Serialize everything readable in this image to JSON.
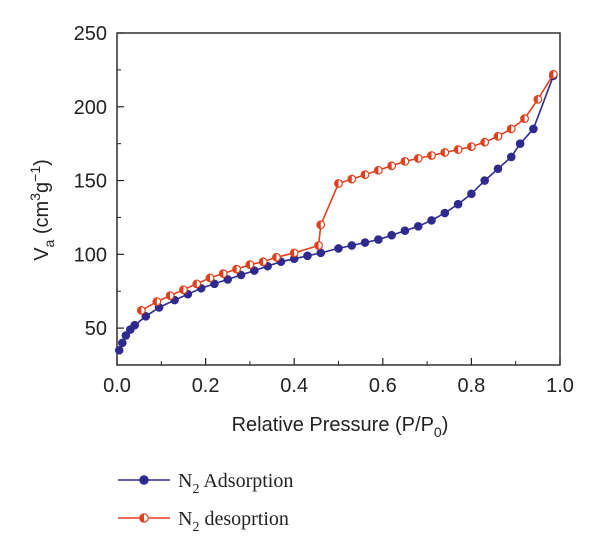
{
  "chart_data": {
    "type": "line",
    "xlabel": "Relative Pressure (P/P",
    "xlabel_sub": "0",
    "xlabel_end": ")",
    "ylabel_main": "V",
    "ylabel_sub": "a",
    "ylabel_open": " (cm",
    "ylabel_sup3": "3",
    "ylabel_g": "g",
    "ylabel_supneg": "−1",
    "ylabel_close": ")",
    "xlim": [
      0,
      1.0
    ],
    "ylim": [
      25,
      250
    ],
    "xticks": [
      0.0,
      0.2,
      0.4,
      0.6,
      0.8,
      1.0
    ],
    "xtick_labels": [
      "0.0",
      "0.2",
      "0.4",
      "0.6",
      "0.8",
      "1.0"
    ],
    "yticks": [
      50,
      100,
      150,
      200,
      250
    ],
    "ytick_labels": [
      "50",
      "100",
      "150",
      "200",
      "250"
    ],
    "grid": false,
    "legend_position": "bottom-left, below plot",
    "series": [
      {
        "name_main": "N",
        "name_sub": "2",
        "name_rest": " Adsorption",
        "color": "#2e2a8f",
        "marker": "filled-circle",
        "x": [
          0.005,
          0.012,
          0.02,
          0.03,
          0.04,
          0.065,
          0.095,
          0.13,
          0.16,
          0.19,
          0.22,
          0.25,
          0.28,
          0.31,
          0.34,
          0.37,
          0.4,
          0.43,
          0.46,
          0.5,
          0.53,
          0.56,
          0.59,
          0.62,
          0.65,
          0.68,
          0.71,
          0.74,
          0.77,
          0.8,
          0.83,
          0.86,
          0.89,
          0.91,
          0.94,
          0.985
        ],
        "y": [
          35,
          40,
          45,
          49,
          52,
          58,
          64,
          69,
          73,
          77,
          80,
          83,
          86,
          89,
          92,
          95,
          97,
          99,
          101,
          104,
          106,
          108,
          110,
          113,
          116,
          119,
          123,
          128,
          134,
          141,
          150,
          158,
          166,
          175,
          185,
          221
        ]
      },
      {
        "name_main": "N",
        "name_sub": "2",
        "name_rest": " desoprtion",
        "color": "#e0401d",
        "marker": "half-filled-circle",
        "x": [
          0.055,
          0.09,
          0.12,
          0.15,
          0.18,
          0.21,
          0.24,
          0.27,
          0.3,
          0.33,
          0.36,
          0.4,
          0.455,
          0.46,
          0.5,
          0.53,
          0.56,
          0.59,
          0.62,
          0.65,
          0.68,
          0.71,
          0.74,
          0.77,
          0.8,
          0.83,
          0.86,
          0.89,
          0.92,
          0.95,
          0.985
        ],
        "y": [
          62,
          68,
          72,
          76,
          80,
          84,
          87,
          90,
          93,
          95,
          98,
          101,
          106,
          120,
          148,
          151,
          154,
          157,
          160,
          163,
          165,
          167,
          169,
          171,
          173,
          176,
          180,
          185,
          192,
          205,
          222
        ]
      }
    ]
  }
}
